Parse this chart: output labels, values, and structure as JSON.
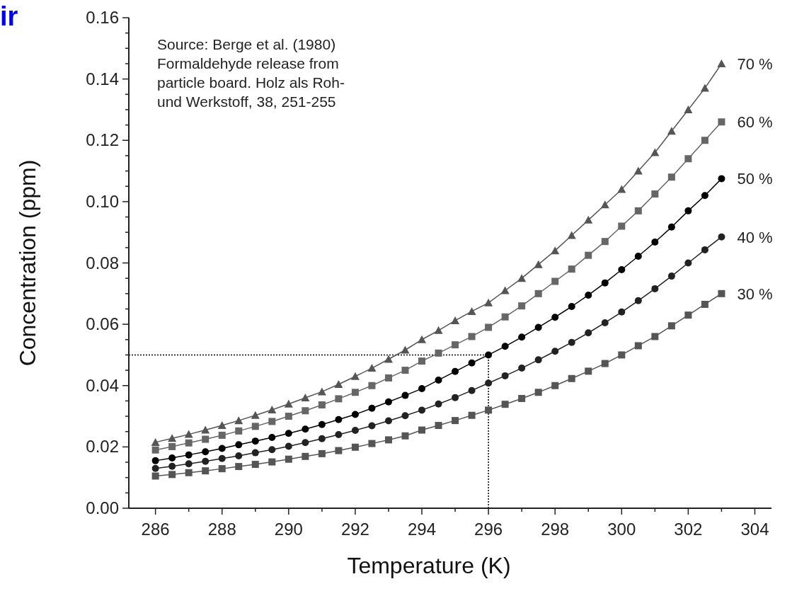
{
  "chart_data": {
    "type": "line",
    "xlabel": "Temperature (K)",
    "ylabel": "Concentration (ppm)",
    "annotations": [
      "ir",
      "Source: Berge et al. (1980)\nFormaldehyde release from\nparticle board. Holz als Roh-\nund Werkstoff, 38, 251-255"
    ],
    "x": [
      286,
      286.5,
      287,
      287.5,
      288,
      288.5,
      289,
      289.5,
      290,
      290.5,
      291,
      291.5,
      292,
      292.5,
      293,
      293.5,
      294,
      294.5,
      295,
      295.5,
      296,
      296.5,
      297,
      297.5,
      298,
      298.5,
      299,
      299.5,
      300,
      300.5,
      301,
      301.5,
      302,
      302.5,
      303
    ],
    "xlim": [
      285.2,
      304.5
    ],
    "xticks": [
      286,
      {
        "value": 287,
        "label": null
      },
      288,
      {
        "value": 289,
        "label": null
      },
      290,
      {
        "value": 291,
        "label": null
      },
      292,
      {
        "value": 293,
        "label": null
      },
      294,
      {
        "value": 295,
        "label": null
      },
      296,
      {
        "value": 297,
        "label": null
      },
      298,
      {
        "value": 299,
        "label": null
      },
      300,
      {
        "value": 301,
        "label": null
      },
      302,
      {
        "value": 303,
        "label": null
      },
      304
    ],
    "ylim": [
      0,
      0.16
    ],
    "yticks": [
      {
        "value": 0,
        "label": "0.00"
      },
      {
        "value": 0.005,
        "label": null
      },
      {
        "value": 0.01,
        "label": null
      },
      {
        "value": 0.015,
        "label": null
      },
      {
        "value": 0.02,
        "label": "0.02"
      },
      {
        "value": 0.025,
        "label": null
      },
      {
        "value": 0.03,
        "label": null
      },
      {
        "value": 0.035,
        "label": null
      },
      {
        "value": 0.04,
        "label": "0.04"
      },
      {
        "value": 0.045,
        "label": null
      },
      {
        "value": 0.05,
        "label": null
      },
      {
        "value": 0.055,
        "label": null
      },
      {
        "value": 0.06,
        "label": "0.06"
      },
      {
        "value": 0.065,
        "label": null
      },
      {
        "value": 0.07,
        "label": null
      },
      {
        "value": 0.075,
        "label": null
      },
      {
        "value": 0.08,
        "label": "0.08"
      },
      {
        "value": 0.085,
        "label": null
      },
      {
        "value": 0.09,
        "label": null
      },
      {
        "value": 0.095,
        "label": null
      },
      {
        "value": 0.1,
        "label": "0.10"
      },
      {
        "value": 0.105,
        "label": null
      },
      {
        "value": 0.11,
        "label": null
      },
      {
        "value": 0.115,
        "label": null
      },
      {
        "value": 0.12,
        "label": "0.12"
      },
      {
        "value": 0.125,
        "label": null
      },
      {
        "value": 0.13,
        "label": null
      },
      {
        "value": 0.135,
        "label": null
      },
      {
        "value": 0.14,
        "label": "0.14"
      },
      {
        "value": 0.145,
        "label": null
      },
      {
        "value": 0.15,
        "label": null
      },
      {
        "value": 0.155,
        "label": null
      },
      {
        "value": 0.16,
        "label": "0.16"
      }
    ],
    "grid": false,
    "line_style": "solid",
    "ref_lines": [
      {
        "axis": "y",
        "value": 0.05,
        "label": null,
        "color": "#000000",
        "line_style": "dotted"
      },
      {
        "axis": "x",
        "value": 296,
        "label": null,
        "color": "#000000",
        "line_style": "dotted"
      }
    ],
    "series": [
      {
        "name": "70 %",
        "color": "#555555",
        "marker": "triangle",
        "values": [
          0.0215,
          0.0228,
          0.0241,
          0.0255,
          0.027,
          0.0286,
          0.0303,
          0.0321,
          0.034,
          0.036,
          0.038,
          0.0404,
          0.043,
          0.0457,
          0.0486,
          0.0516,
          0.055,
          0.058,
          0.0612,
          0.0642,
          0.067,
          0.071,
          0.075,
          0.0795,
          0.084,
          0.089,
          0.094,
          0.099,
          0.104,
          0.11,
          0.116,
          0.123,
          0.13,
          0.137,
          0.145
        ]
      },
      {
        "name": "60 %",
        "color": "#666666",
        "marker": "square",
        "values": [
          0.019,
          0.0201,
          0.0213,
          0.0225,
          0.0238,
          0.0252,
          0.0267,
          0.0283,
          0.03,
          0.0318,
          0.0337,
          0.0357,
          0.0378,
          0.04,
          0.0425,
          0.045,
          0.048,
          0.0506,
          0.0533,
          0.056,
          0.059,
          0.0624,
          0.066,
          0.07,
          0.074,
          0.078,
          0.0825,
          0.087,
          0.092,
          0.097,
          0.1025,
          0.108,
          0.114,
          0.12,
          0.126
        ]
      },
      {
        "name": "50 %",
        "color": "#000000",
        "marker": "circle",
        "values": [
          0.0155,
          0.0164,
          0.0174,
          0.0184,
          0.0195,
          0.0207,
          0.0219,
          0.0231,
          0.0244,
          0.0258,
          0.0273,
          0.0289,
          0.0306,
          0.0326,
          0.0347,
          0.0368,
          0.039,
          0.0418,
          0.0446,
          0.0474,
          0.05,
          0.0528,
          0.0558,
          0.059,
          0.0623,
          0.0658,
          0.0695,
          0.0735,
          0.0778,
          0.0822,
          0.0868,
          0.0917,
          0.097,
          0.102,
          0.1075
        ]
      },
      {
        "name": "40 %",
        "color": "#222222",
        "marker": "circle",
        "values": [
          0.013,
          0.0137,
          0.0145,
          0.0153,
          0.0162,
          0.0171,
          0.0181,
          0.0191,
          0.0202,
          0.0214,
          0.0227,
          0.024,
          0.0254,
          0.0269,
          0.0285,
          0.0302,
          0.032,
          0.034,
          0.0361,
          0.0384,
          0.0408,
          0.0432,
          0.0457,
          0.0484,
          0.0512,
          0.0541,
          0.0572,
          0.0605,
          0.064,
          0.0677,
          0.0716,
          0.0757,
          0.08,
          0.0843,
          0.0885
        ]
      },
      {
        "name": "30 %",
        "color": "#555555",
        "marker": "square",
        "values": [
          0.0105,
          0.011,
          0.0116,
          0.0122,
          0.0129,
          0.0136,
          0.0143,
          0.0151,
          0.016,
          0.0169,
          0.0178,
          0.0188,
          0.0199,
          0.0211,
          0.0223,
          0.0236,
          0.0255,
          0.027,
          0.0286,
          0.0303,
          0.032,
          0.0339,
          0.0358,
          0.0378,
          0.04,
          0.0423,
          0.0447,
          0.0472,
          0.05,
          0.053,
          0.056,
          0.0595,
          0.063,
          0.0665,
          0.07
        ]
      }
    ]
  }
}
